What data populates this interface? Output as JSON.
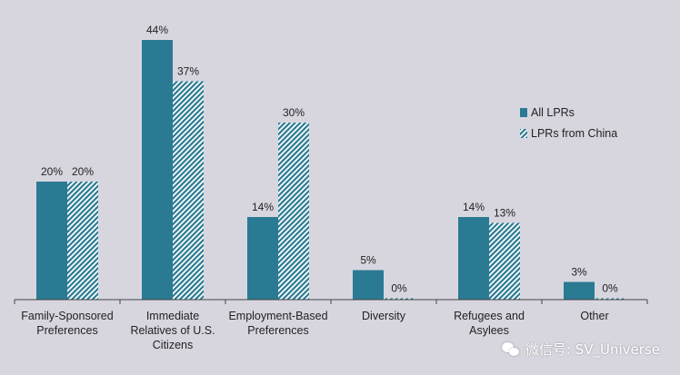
{
  "chart_data": {
    "type": "bar",
    "categories": [
      [
        "Family-Sponsored",
        "Preferences"
      ],
      [
        "Immediate",
        "Relatives of U.S.",
        "Citizens"
      ],
      [
        "Employment-Based",
        "Preferences"
      ],
      [
        "Diversity"
      ],
      [
        "Refugees and",
        "Asylees"
      ],
      [
        "Other"
      ]
    ],
    "series": [
      {
        "name": "All LPRs",
        "values": [
          20,
          44,
          14,
          5,
          14,
          3
        ],
        "labels": [
          "20%",
          "44%",
          "14%",
          "5%",
          "14%",
          "3%"
        ],
        "color": "#2a7a93",
        "pattern": "solid"
      },
      {
        "name": "LPRs from China",
        "values": [
          20,
          37,
          30,
          0,
          13,
          0
        ],
        "labels": [
          "20%",
          "37%",
          "30%",
          "0%",
          "13%",
          "0%"
        ],
        "color": "#2a7a93",
        "pattern": "hatched"
      }
    ],
    "ylim": [
      0,
      44
    ],
    "grid": false,
    "legend_position": "right"
  },
  "watermark": {
    "icon": "wechat-icon",
    "text": "微信号: SV_Universe"
  }
}
